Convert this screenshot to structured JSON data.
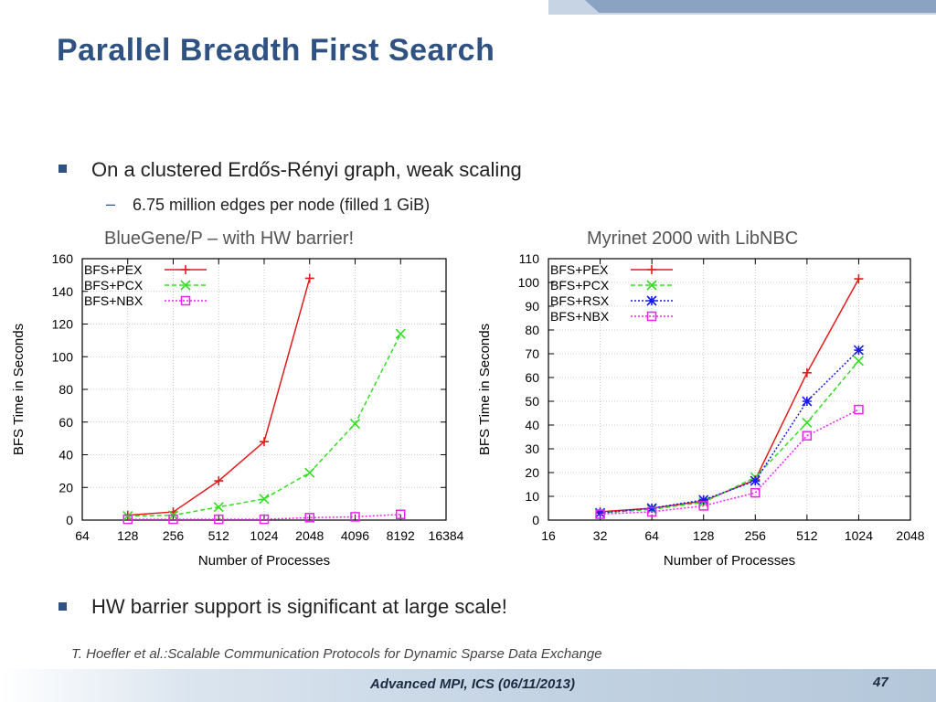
{
  "slide": {
    "title": "Parallel Breadth First Search",
    "bullet1": "On a clustered Erdős-Rényi graph, weak scaling",
    "sub1": "6.75 million edges per node (filled 1 GiB)",
    "caption_left": "BlueGene/P – with HW barrier!",
    "caption_right": "Myrinet 2000 with LibNBC",
    "bullet2": "HW barrier support is significant at large scale!",
    "reference": "T. Hoefler et al.:Scalable Communication Protocols for Dynamic Sparse Data Exchange",
    "footer": "Advanced MPI, ICS (06/11/2013)",
    "page": "47",
    "accent_color": "#2f5283"
  },
  "chart_data": [
    {
      "type": "line",
      "xlabel": "Number of Processes",
      "ylabel": "BFS Time in Seconds",
      "x_scale": "log2",
      "x_ticks": [
        64,
        128,
        256,
        512,
        1024,
        2048,
        4096,
        8192,
        16384
      ],
      "xlim": [
        64,
        16384
      ],
      "ylim": [
        0,
        160
      ],
      "y_ticks": [
        0,
        20,
        40,
        60,
        80,
        100,
        120,
        140,
        160
      ],
      "grid": true,
      "legend": "top-left",
      "series": [
        {
          "name": "BFS+PEX",
          "color": "#e41a1c",
          "marker": "plus",
          "dash": "solid",
          "x": [
            128,
            256,
            512,
            1024,
            2048
          ],
          "values": [
            3,
            5,
            24,
            48,
            148
          ]
        },
        {
          "name": "BFS+PCX",
          "color": "#33dd22",
          "marker": "x",
          "dash": "dashed",
          "x": [
            128,
            256,
            512,
            1024,
            2048,
            4096,
            8192
          ],
          "values": [
            2.5,
            3,
            8,
            13,
            29,
            59,
            114
          ]
        },
        {
          "name": "BFS+NBX",
          "color": "#ee22ee",
          "marker": "square",
          "dash": "dotted",
          "x": [
            128,
            256,
            512,
            1024,
            2048,
            4096,
            8192
          ],
          "values": [
            0.5,
            0.5,
            0.5,
            0.5,
            1.5,
            2,
            3.5
          ]
        }
      ]
    },
    {
      "type": "line",
      "xlabel": "Number of Processes",
      "ylabel": "BFS Time in Seconds",
      "x_scale": "log2",
      "x_ticks": [
        16,
        32,
        64,
        128,
        256,
        512,
        1024,
        2048
      ],
      "xlim": [
        16,
        2048
      ],
      "ylim": [
        0,
        110
      ],
      "y_ticks": [
        0,
        10,
        20,
        30,
        40,
        50,
        60,
        70,
        80,
        90,
        100,
        110
      ],
      "grid": true,
      "legend": "top-left",
      "series": [
        {
          "name": "BFS+PEX",
          "color": "#e41a1c",
          "marker": "plus",
          "dash": "solid",
          "x": [
            32,
            64,
            128,
            256,
            512,
            1024
          ],
          "values": [
            3.5,
            5,
            8,
            17,
            62,
            101.5
          ]
        },
        {
          "name": "BFS+PCX",
          "color": "#33dd22",
          "marker": "x",
          "dash": "dashed",
          "x": [
            32,
            64,
            128,
            256,
            512,
            1024
          ],
          "values": [
            3,
            4.5,
            7.5,
            18,
            41,
            67
          ]
        },
        {
          "name": "BFS+RSX",
          "color": "#1a1aee",
          "marker": "star",
          "dash": "dotted",
          "x": [
            32,
            64,
            128,
            256,
            512,
            1024
          ],
          "values": [
            3,
            5,
            8.5,
            16.5,
            50,
            71.5
          ]
        },
        {
          "name": "BFS+NBX",
          "color": "#ee22ee",
          "marker": "square",
          "dash": "dotted",
          "x": [
            32,
            64,
            128,
            256,
            512,
            1024
          ],
          "values": [
            2.5,
            3.5,
            6,
            11.5,
            35.5,
            46.5
          ]
        }
      ]
    }
  ]
}
